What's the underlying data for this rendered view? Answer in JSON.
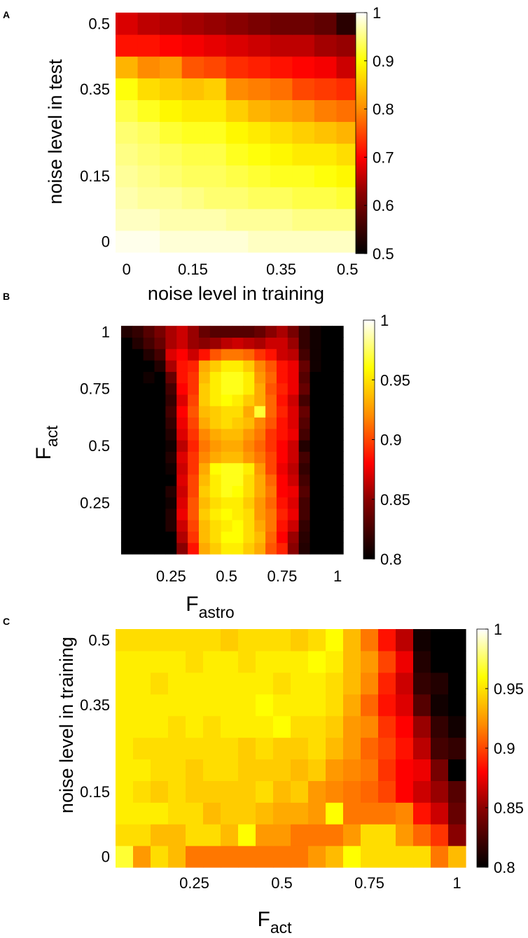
{
  "colormap": {
    "name": "hot",
    "stops": [
      "#000000",
      "#8b0000",
      "#ff0000",
      "#ff8c00",
      "#ffff00",
      "#ffffff"
    ]
  },
  "chart_data": [
    {
      "panel": "A",
      "type": "heatmap",
      "xlabel": "noise level in training",
      "ylabel": "noise level in test",
      "xticks": [
        0,
        0.15,
        0.35,
        0.5
      ],
      "yticks": [
        0,
        0.15,
        0.35,
        0.5
      ],
      "xlim": [
        -0.025,
        0.525
      ],
      "ylim": [
        -0.025,
        0.525
      ],
      "clim": [
        0.5,
        1
      ],
      "cticks": [
        0.5,
        0.6,
        0.7,
        0.8,
        0.9,
        1
      ],
      "x": [
        0,
        0.05,
        0.1,
        0.15,
        0.2,
        0.25,
        0.3,
        0.35,
        0.4,
        0.45,
        0.5
      ],
      "y": [
        0,
        0.05,
        0.1,
        0.15,
        0.2,
        0.25,
        0.3,
        0.35,
        0.4,
        0.45,
        0.5
      ],
      "z": [
        [
          0.99,
          0.99,
          0.98,
          0.98,
          0.98,
          0.98,
          0.97,
          0.97,
          0.97,
          0.97,
          0.97
        ],
        [
          0.97,
          0.97,
          0.96,
          0.96,
          0.96,
          0.95,
          0.95,
          0.95,
          0.94,
          0.94,
          0.94
        ],
        [
          0.96,
          0.95,
          0.95,
          0.94,
          0.93,
          0.93,
          0.92,
          0.92,
          0.91,
          0.91,
          0.9
        ],
        [
          0.95,
          0.94,
          0.93,
          0.92,
          0.92,
          0.91,
          0.9,
          0.89,
          0.89,
          0.88,
          0.87
        ],
        [
          0.94,
          0.93,
          0.92,
          0.91,
          0.91,
          0.89,
          0.88,
          0.87,
          0.86,
          0.86,
          0.85
        ],
        [
          0.93,
          0.92,
          0.9,
          0.89,
          0.89,
          0.87,
          0.86,
          0.85,
          0.84,
          0.83,
          0.82
        ],
        [
          0.91,
          0.89,
          0.87,
          0.86,
          0.86,
          0.84,
          0.82,
          0.81,
          0.8,
          0.78,
          0.77
        ],
        [
          0.88,
          0.85,
          0.84,
          0.83,
          0.84,
          0.79,
          0.78,
          0.77,
          0.74,
          0.73,
          0.72
        ],
        [
          0.82,
          0.79,
          0.8,
          0.75,
          0.74,
          0.72,
          0.71,
          0.7,
          0.69,
          0.68,
          0.65
        ],
        [
          0.7,
          0.7,
          0.69,
          0.68,
          0.67,
          0.66,
          0.65,
          0.64,
          0.64,
          0.62,
          0.61
        ],
        [
          0.66,
          0.64,
          0.63,
          0.62,
          0.61,
          0.6,
          0.59,
          0.58,
          0.58,
          0.57,
          0.53
        ]
      ]
    },
    {
      "panel": "B",
      "type": "heatmap",
      "xlabel": "F",
      "xlabel_sub": "astro",
      "ylabel": "F",
      "ylabel_sub": "act",
      "xticks": [
        0.25,
        0.5,
        0.75,
        1
      ],
      "yticks": [
        0.25,
        0.5,
        0.75,
        1
      ],
      "xlim": [
        0,
        1.05
      ],
      "ylim": [
        0,
        1.05
      ],
      "clim": [
        0.8,
        1
      ],
      "cticks": [
        0.8,
        0.85,
        0.9,
        0.95,
        1
      ],
      "x": [
        0.05,
        0.1,
        0.15,
        0.2,
        0.25,
        0.3,
        0.35,
        0.4,
        0.45,
        0.5,
        0.55,
        0.6,
        0.65,
        0.7,
        0.75,
        0.8,
        0.85,
        0.9,
        0.95,
        1.0
      ],
      "y": [
        0.05,
        0.1,
        0.15,
        0.2,
        0.25,
        0.3,
        0.35,
        0.4,
        0.45,
        0.5,
        0.55,
        0.6,
        0.65,
        0.7,
        0.75,
        0.8,
        0.85,
        0.9,
        0.95,
        1.0
      ],
      "z": [
        [
          0.8,
          0.8,
          0.8,
          0.8,
          0.8,
          0.84,
          0.88,
          0.925,
          0.935,
          0.945,
          0.945,
          0.935,
          0.925,
          0.9,
          0.885,
          0.84,
          0.81,
          0.8,
          0.8,
          0.8
        ],
        [
          0.8,
          0.8,
          0.8,
          0.8,
          0.8,
          0.852,
          0.89,
          0.93,
          0.94,
          0.95,
          0.95,
          0.94,
          0.93,
          0.905,
          0.875,
          0.845,
          0.812,
          0.8,
          0.8,
          0.8
        ],
        [
          0.8,
          0.8,
          0.8,
          0.8,
          0.81,
          0.86,
          0.895,
          0.93,
          0.94,
          0.945,
          0.95,
          0.94,
          0.925,
          0.91,
          0.88,
          0.86,
          0.815,
          0.8,
          0.8,
          0.8
        ],
        [
          0.8,
          0.8,
          0.8,
          0.8,
          0.81,
          0.87,
          0.9,
          0.935,
          0.945,
          0.95,
          0.945,
          0.94,
          0.92,
          0.91,
          0.885,
          0.87,
          0.82,
          0.8,
          0.8,
          0.8
        ],
        [
          0.8,
          0.8,
          0.8,
          0.8,
          0.805,
          0.865,
          0.9,
          0.93,
          0.94,
          0.945,
          0.945,
          0.935,
          0.92,
          0.905,
          0.88,
          0.865,
          0.82,
          0.8,
          0.8,
          0.8
        ],
        [
          0.8,
          0.8,
          0.8,
          0.8,
          0.81,
          0.86,
          0.895,
          0.935,
          0.945,
          0.955,
          0.95,
          0.94,
          0.925,
          0.91,
          0.875,
          0.87,
          0.825,
          0.8,
          0.8,
          0.8
        ],
        [
          0.8,
          0.8,
          0.8,
          0.8,
          0.8,
          0.865,
          0.895,
          0.93,
          0.945,
          0.955,
          0.955,
          0.94,
          0.925,
          0.905,
          0.875,
          0.86,
          0.82,
          0.8,
          0.8,
          0.8
        ],
        [
          0.8,
          0.8,
          0.8,
          0.8,
          0.805,
          0.86,
          0.89,
          0.925,
          0.95,
          0.955,
          0.955,
          0.945,
          0.92,
          0.895,
          0.87,
          0.855,
          0.815,
          0.8,
          0.8,
          0.8
        ],
        [
          0.8,
          0.8,
          0.8,
          0.8,
          0.81,
          0.865,
          0.89,
          0.915,
          0.925,
          0.93,
          0.93,
          0.92,
          0.91,
          0.895,
          0.875,
          0.86,
          0.82,
          0.8,
          0.8,
          0.8
        ],
        [
          0.8,
          0.8,
          0.8,
          0.8,
          0.805,
          0.855,
          0.885,
          0.91,
          0.92,
          0.925,
          0.925,
          0.915,
          0.905,
          0.89,
          0.875,
          0.86,
          0.81,
          0.8,
          0.8,
          0.8
        ],
        [
          0.8,
          0.8,
          0.8,
          0.8,
          0.81,
          0.865,
          0.89,
          0.915,
          0.925,
          0.93,
          0.93,
          0.92,
          0.91,
          0.89,
          0.88,
          0.87,
          0.82,
          0.8,
          0.8,
          0.8
        ],
        [
          0.8,
          0.8,
          0.8,
          0.8,
          0.815,
          0.87,
          0.895,
          0.925,
          0.935,
          0.94,
          0.935,
          0.93,
          0.915,
          0.9,
          0.88,
          0.865,
          0.825,
          0.8,
          0.8,
          0.8
        ],
        [
          0.8,
          0.8,
          0.8,
          0.8,
          0.82,
          0.875,
          0.9,
          0.93,
          0.935,
          0.94,
          0.94,
          0.925,
          0.96,
          0.905,
          0.885,
          0.865,
          0.83,
          0.8,
          0.8,
          0.8
        ],
        [
          0.8,
          0.8,
          0.8,
          0.8,
          0.815,
          0.865,
          0.895,
          0.935,
          0.945,
          0.95,
          0.945,
          0.935,
          0.925,
          0.905,
          0.88,
          0.86,
          0.82,
          0.8,
          0.8,
          0.8
        ],
        [
          0.8,
          0.8,
          0.8,
          0.8,
          0.82,
          0.875,
          0.89,
          0.935,
          0.945,
          0.955,
          0.955,
          0.945,
          0.925,
          0.9,
          0.885,
          0.87,
          0.83,
          0.8,
          0.8,
          0.8
        ],
        [
          0.8,
          0.8,
          0.805,
          0.8,
          0.83,
          0.88,
          0.89,
          0.93,
          0.945,
          0.955,
          0.955,
          0.945,
          0.92,
          0.905,
          0.88,
          0.87,
          0.825,
          0.8,
          0.8,
          0.8
        ],
        [
          0.8,
          0.8,
          0.8,
          0.81,
          0.85,
          0.88,
          0.885,
          0.925,
          0.935,
          0.945,
          0.945,
          0.935,
          0.915,
          0.9,
          0.88,
          0.87,
          0.83,
          0.805,
          0.8,
          0.8
        ],
        [
          0.8,
          0.8,
          0.81,
          0.82,
          0.865,
          0.875,
          0.86,
          0.88,
          0.9,
          0.91,
          0.91,
          0.905,
          0.89,
          0.88,
          0.86,
          0.855,
          0.82,
          0.805,
          0.8,
          0.8
        ],
        [
          0.8,
          0.81,
          0.82,
          0.83,
          0.85,
          0.86,
          0.845,
          0.84,
          0.845,
          0.855,
          0.86,
          0.855,
          0.85,
          0.86,
          0.86,
          0.845,
          0.815,
          0.805,
          0.8,
          0.8
        ],
        [
          0.81,
          0.815,
          0.825,
          0.835,
          0.85,
          0.86,
          0.845,
          0.83,
          0.825,
          0.825,
          0.825,
          0.825,
          0.83,
          0.84,
          0.85,
          0.835,
          0.815,
          0.805,
          0.8,
          0.8
        ]
      ]
    },
    {
      "panel": "C",
      "type": "heatmap",
      "xlabel": "F",
      "xlabel_sub": "act",
      "ylabel": "noise level in training",
      "xticks": [
        0.25,
        0.5,
        0.75,
        1
      ],
      "yticks": [
        0,
        0.15,
        0.35,
        0.5
      ],
      "xlim": [
        0.025,
        1.025
      ],
      "ylim": [
        -0.025,
        0.525
      ],
      "clim": [
        0.8,
        1
      ],
      "cticks": [
        0.8,
        0.85,
        0.9,
        0.95,
        1
      ],
      "x": [
        0.05,
        0.1,
        0.15,
        0.2,
        0.25,
        0.3,
        0.35,
        0.4,
        0.45,
        0.5,
        0.55,
        0.6,
        0.65,
        0.7,
        0.75,
        0.8,
        0.85,
        0.9,
        0.95,
        1.0
      ],
      "y": [
        0,
        0.05,
        0.1,
        0.15,
        0.2,
        0.25,
        0.3,
        0.35,
        0.4,
        0.45,
        0.5
      ],
      "z": [
        [
          0.96,
          0.92,
          0.94,
          0.93,
          0.91,
          0.91,
          0.91,
          0.91,
          0.91,
          0.91,
          0.91,
          0.92,
          0.93,
          0.95,
          0.94,
          0.94,
          0.94,
          0.94,
          0.91,
          0.93
        ],
        [
          0.94,
          0.94,
          0.93,
          0.93,
          0.94,
          0.94,
          0.93,
          0.95,
          0.92,
          0.92,
          0.91,
          0.91,
          0.91,
          0.92,
          0.94,
          0.94,
          0.92,
          0.905,
          0.89,
          0.84
        ],
        [
          0.945,
          0.945,
          0.945,
          0.94,
          0.94,
          0.93,
          0.935,
          0.935,
          0.93,
          0.925,
          0.925,
          0.92,
          0.95,
          0.91,
          0.91,
          0.91,
          0.915,
          0.88,
          0.86,
          0.83
        ],
        [
          0.945,
          0.94,
          0.935,
          0.94,
          0.935,
          0.935,
          0.935,
          0.935,
          0.94,
          0.93,
          0.935,
          0.92,
          0.915,
          0.91,
          0.905,
          0.895,
          0.875,
          0.86,
          0.845,
          0.825
        ],
        [
          0.945,
          0.945,
          0.94,
          0.94,
          0.935,
          0.94,
          0.94,
          0.935,
          0.935,
          0.935,
          0.93,
          0.935,
          0.92,
          0.915,
          0.91,
          0.89,
          0.875,
          0.87,
          0.835,
          0.8
        ],
        [
          0.945,
          0.94,
          0.94,
          0.94,
          0.94,
          0.94,
          0.94,
          0.935,
          0.94,
          0.935,
          0.935,
          0.94,
          0.93,
          0.92,
          0.905,
          0.895,
          0.88,
          0.855,
          0.82,
          0.815
        ],
        [
          0.945,
          0.945,
          0.945,
          0.94,
          0.945,
          0.94,
          0.945,
          0.945,
          0.945,
          0.95,
          0.94,
          0.94,
          0.935,
          0.92,
          0.915,
          0.89,
          0.875,
          0.845,
          0.815,
          0.805
        ],
        [
          0.945,
          0.945,
          0.945,
          0.945,
          0.945,
          0.945,
          0.945,
          0.945,
          0.95,
          0.945,
          0.945,
          0.945,
          0.94,
          0.925,
          0.905,
          0.88,
          0.865,
          0.825,
          0.805,
          0.8
        ],
        [
          0.945,
          0.945,
          0.94,
          0.945,
          0.945,
          0.945,
          0.945,
          0.945,
          0.945,
          0.94,
          0.945,
          0.945,
          0.94,
          0.93,
          0.915,
          0.885,
          0.86,
          0.815,
          0.81,
          0.8
        ],
        [
          0.945,
          0.945,
          0.945,
          0.945,
          0.94,
          0.945,
          0.945,
          0.94,
          0.945,
          0.945,
          0.945,
          0.95,
          0.945,
          0.93,
          0.92,
          0.895,
          0.87,
          0.81,
          0.8,
          0.8
        ],
        [
          0.94,
          0.94,
          0.94,
          0.94,
          0.94,
          0.94,
          0.935,
          0.94,
          0.94,
          0.94,
          0.935,
          0.94,
          0.95,
          0.93,
          0.91,
          0.88,
          0.855,
          0.805,
          0.8,
          0.8
        ]
      ]
    }
  ],
  "panel_labels": [
    "A",
    "B",
    "C"
  ]
}
